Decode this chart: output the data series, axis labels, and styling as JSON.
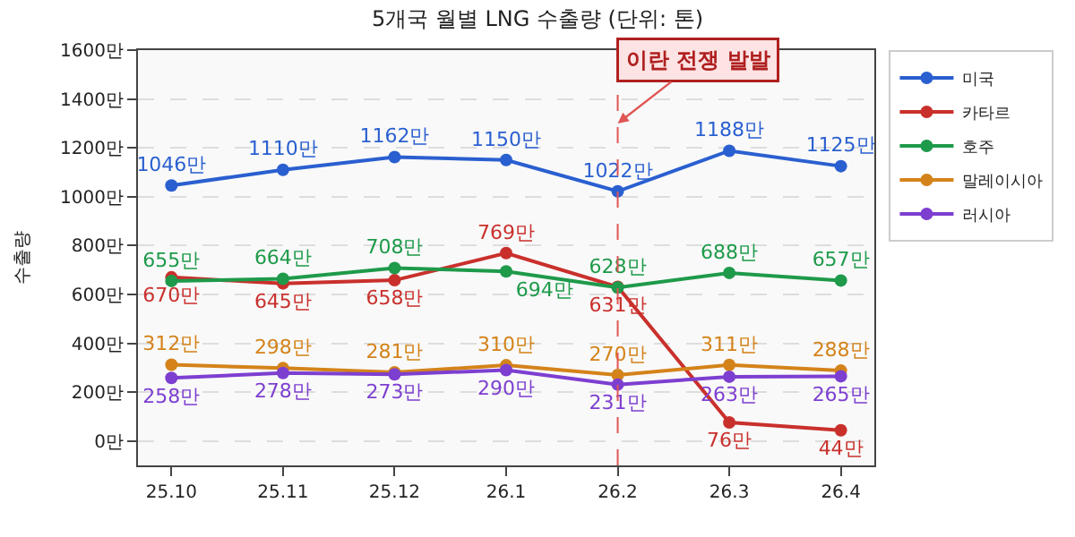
{
  "chart_data": {
    "type": "line",
    "title": "5개국 월별 LNG 수출량 (단위: 톤)",
    "ylabel": "수출량",
    "categories": [
      "25.10",
      "25.11",
      "25.12",
      "26.1",
      "26.2",
      "26.3",
      "26.4"
    ],
    "series": [
      {
        "name": "미국",
        "color": "#2a5fd0",
        "values": [
          1046,
          1110,
          1162,
          1150,
          1022,
          1188,
          1125
        ],
        "value_labels": [
          "1046만",
          "1110만",
          "1162만",
          "1150만",
          "1022만",
          "1188만",
          "1125만"
        ]
      },
      {
        "name": "카타르",
        "color": "#c9302c",
        "values": [
          670,
          645,
          658,
          769,
          631,
          76,
          44
        ],
        "value_labels": [
          "670만",
          "645만",
          "658만",
          "769만",
          "631만",
          "76만",
          "44만"
        ]
      },
      {
        "name": "호주",
        "color": "#1e9a4a",
        "values": [
          655,
          664,
          708,
          694,
          628,
          688,
          657
        ],
        "value_labels": [
          "655만",
          "664만",
          "708만",
          "694만",
          "628만",
          "688만",
          "657만"
        ]
      },
      {
        "name": "말레이시아",
        "color": "#d4831a",
        "values": [
          312,
          298,
          281,
          310,
          270,
          311,
          288
        ],
        "value_labels": [
          "312만",
          "298만",
          "281만",
          "310만",
          "270만",
          "311만",
          "288만"
        ]
      },
      {
        "name": "러시아",
        "color": "#7d3fd0",
        "values": [
          258,
          278,
          273,
          290,
          231,
          263,
          265
        ],
        "value_labels": [
          "258만",
          "278만",
          "273만",
          "290만",
          "231만",
          "263만",
          "265만"
        ]
      }
    ],
    "ylim": [
      -100,
      1600
    ],
    "yticks": [
      {
        "value": 0,
        "label": "0만"
      },
      {
        "value": 200,
        "label": "200만"
      },
      {
        "value": 400,
        "label": "400만"
      },
      {
        "value": 600,
        "label": "600만"
      },
      {
        "value": 800,
        "label": "800만"
      },
      {
        "value": 1000,
        "label": "1000만"
      },
      {
        "value": 1200,
        "label": "1200만"
      },
      {
        "value": 1400,
        "label": "1400만"
      },
      {
        "value": 1600,
        "label": "1600만"
      }
    ],
    "ref_lines": [
      {
        "axis": "x",
        "value": "26.2",
        "label": "이란 전쟁 발발",
        "color": "#e05555",
        "line_style": "dashed"
      }
    ],
    "grid": "y",
    "legend": "right",
    "marker": "circle",
    "line_style": "solid"
  }
}
